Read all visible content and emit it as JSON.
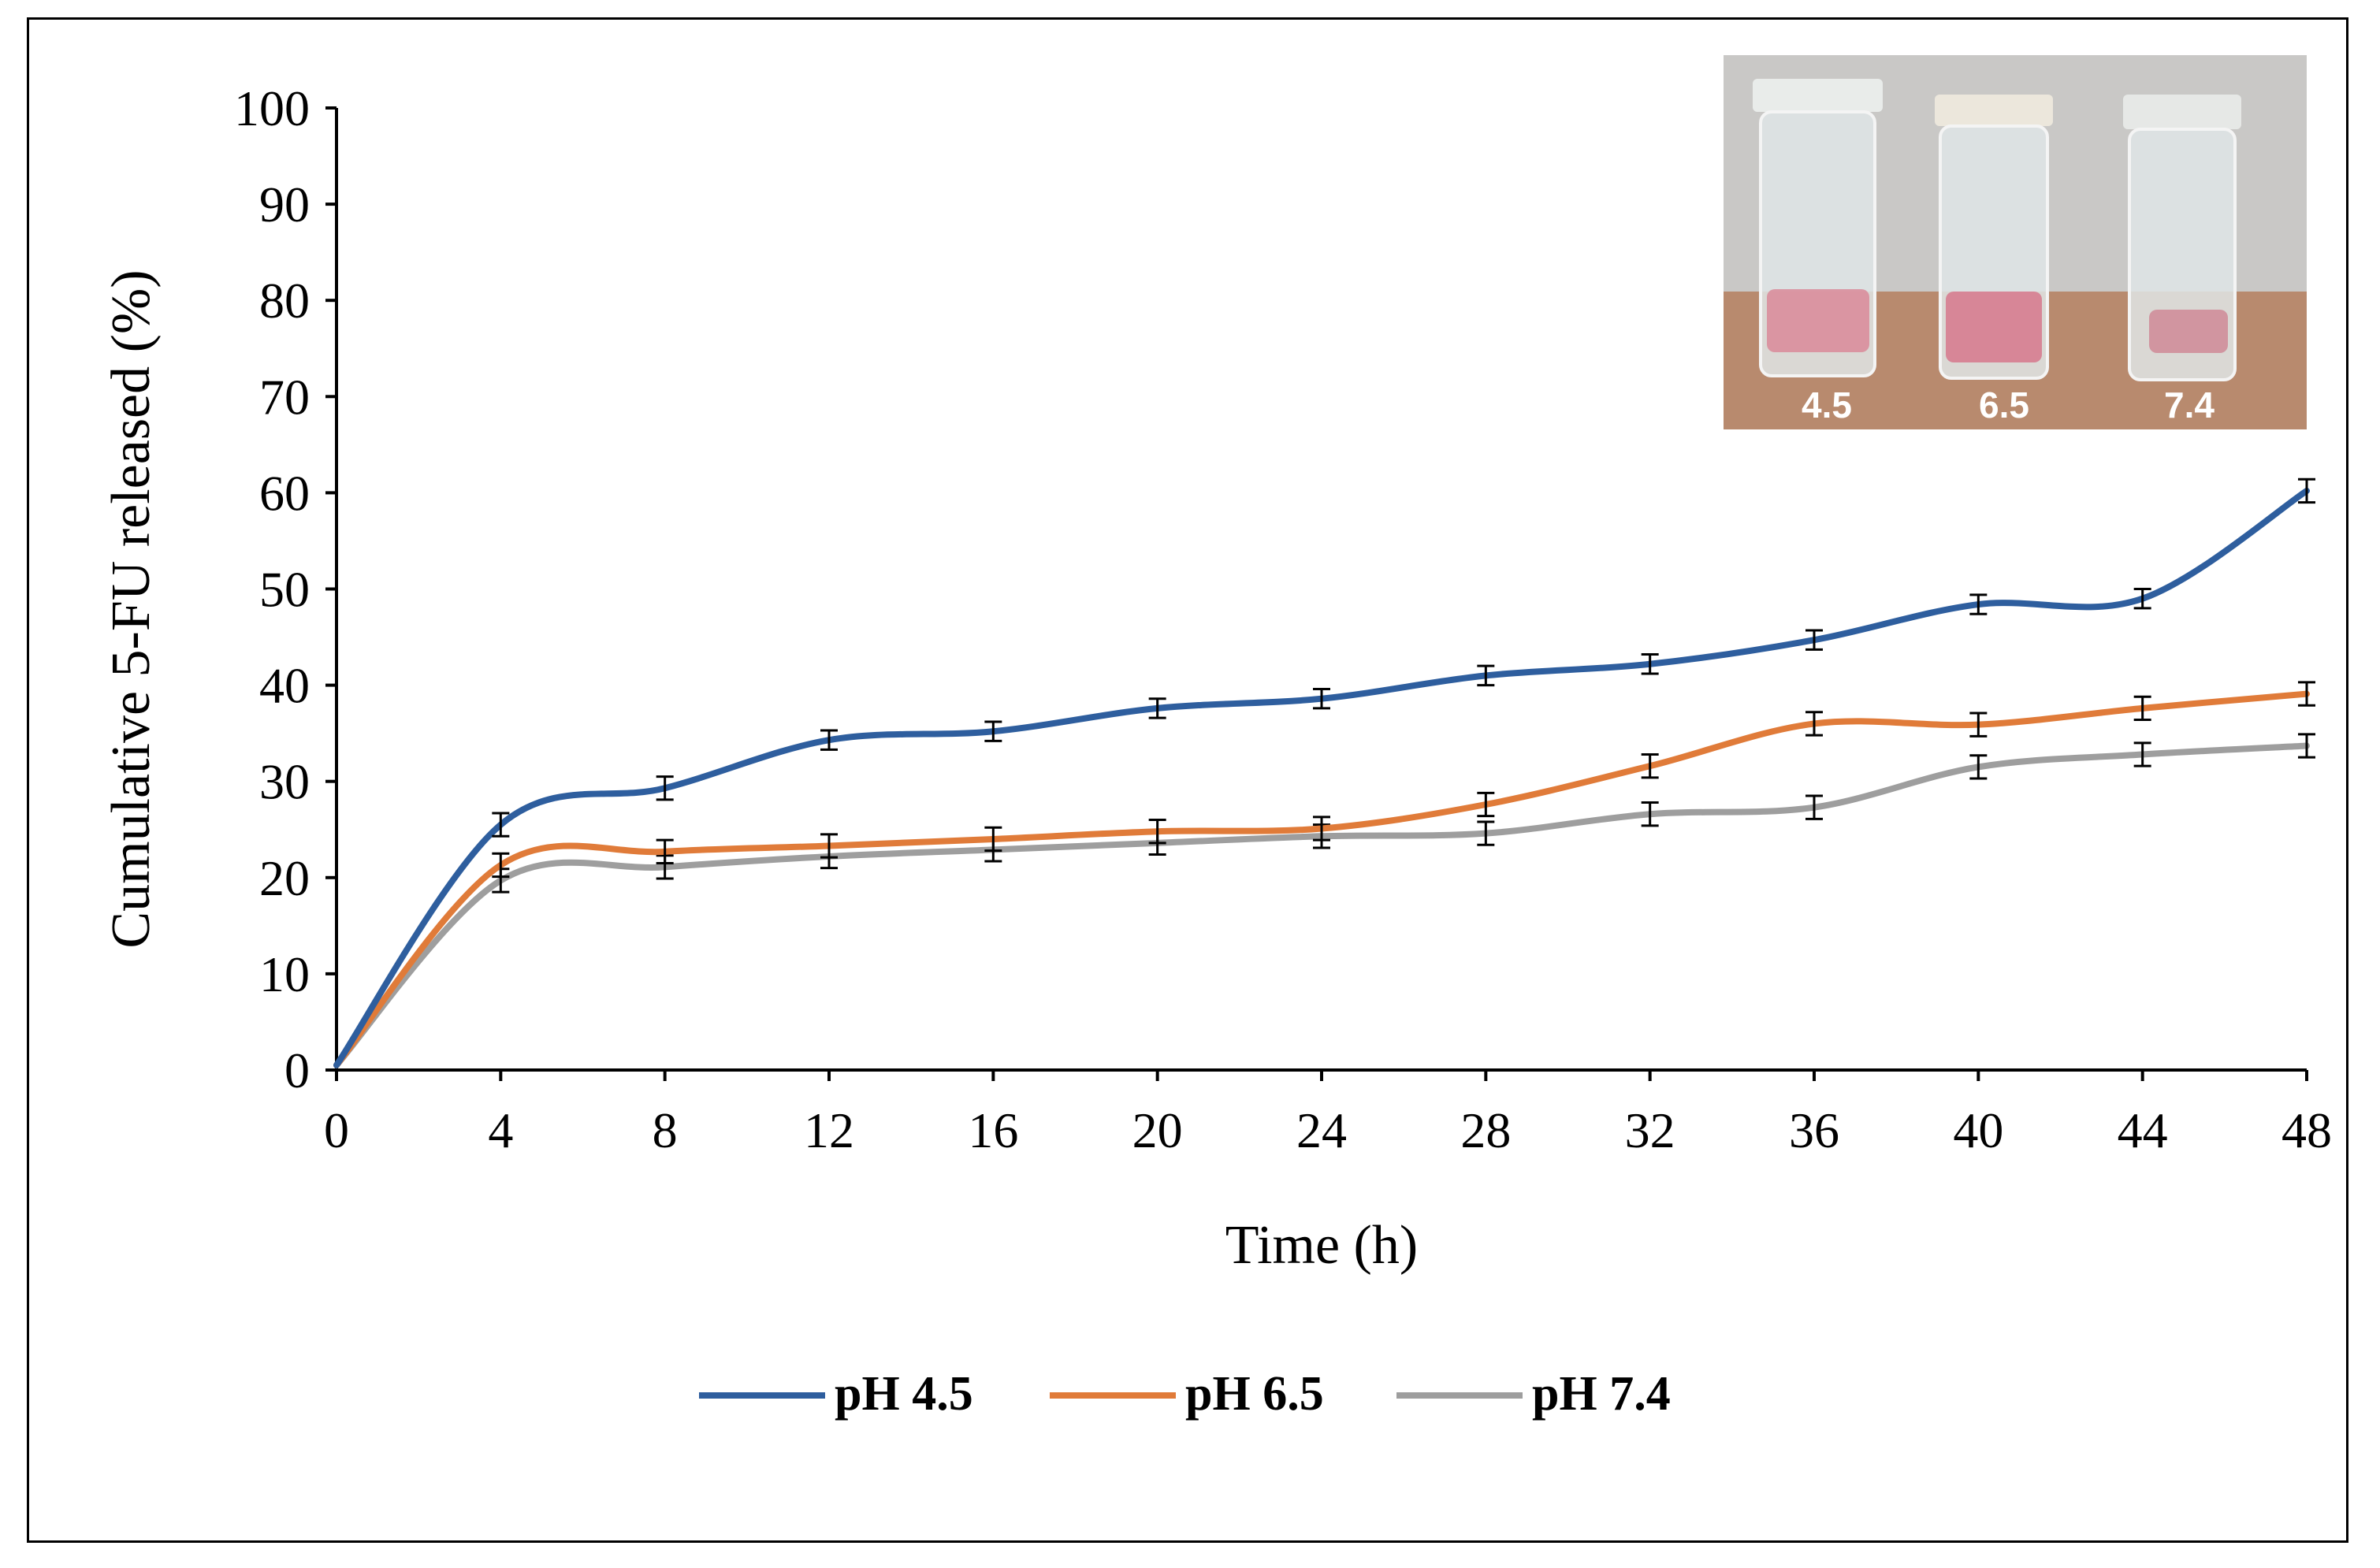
{
  "chart_data": {
    "type": "line",
    "xlabel": "Time (h)",
    "ylabel": "Cumulative 5-FU released (%)",
    "xlim": [
      0,
      48
    ],
    "ylim": [
      0,
      100
    ],
    "x_ticks": [
      0,
      4,
      8,
      12,
      16,
      20,
      24,
      28,
      32,
      36,
      40,
      44,
      48
    ],
    "y_ticks": [
      0,
      10,
      20,
      30,
      40,
      50,
      60,
      70,
      80,
      90,
      100
    ],
    "grid": false,
    "legend_position": "bottom",
    "error_bars": true,
    "x": [
      0,
      4,
      8,
      12,
      16,
      20,
      24,
      28,
      32,
      36,
      40,
      44,
      48
    ],
    "series": [
      {
        "name": "pH 4.5",
        "color": "#2E5E9E",
        "values": [
          0.5,
          25.5,
          29.3,
          34.3,
          35.2,
          37.6,
          38.6,
          41.0,
          42.2,
          44.7,
          48.4,
          49.0,
          60.2
        ],
        "errors": [
          0.3,
          1.2,
          1.2,
          1.0,
          1.0,
          1.0,
          1.0,
          1.0,
          1.0,
          1.0,
          1.0,
          1.0,
          1.2
        ]
      },
      {
        "name": "pH 6.5",
        "color": "#E07B39",
        "values": [
          0.5,
          21.3,
          22.7,
          23.3,
          24.0,
          24.8,
          25.1,
          27.6,
          31.6,
          36.0,
          35.9,
          37.6,
          39.1
        ],
        "errors": [
          0.3,
          1.2,
          1.2,
          1.2,
          1.2,
          1.2,
          1.2,
          1.2,
          1.2,
          1.2,
          1.2,
          1.2,
          1.2
        ]
      },
      {
        "name": "pH 7.4",
        "color": "#9E9E9E",
        "values": [
          0.5,
          19.7,
          21.1,
          22.2,
          22.9,
          23.6,
          24.3,
          24.6,
          26.6,
          27.3,
          31.5,
          32.8,
          33.7
        ],
        "errors": [
          0.3,
          1.2,
          1.2,
          1.2,
          1.2,
          1.2,
          1.2,
          1.2,
          1.2,
          1.2,
          1.2,
          1.2,
          1.2
        ]
      }
    ]
  },
  "inset": {
    "labels": [
      "4.5",
      "6.5",
      "7.4"
    ]
  }
}
